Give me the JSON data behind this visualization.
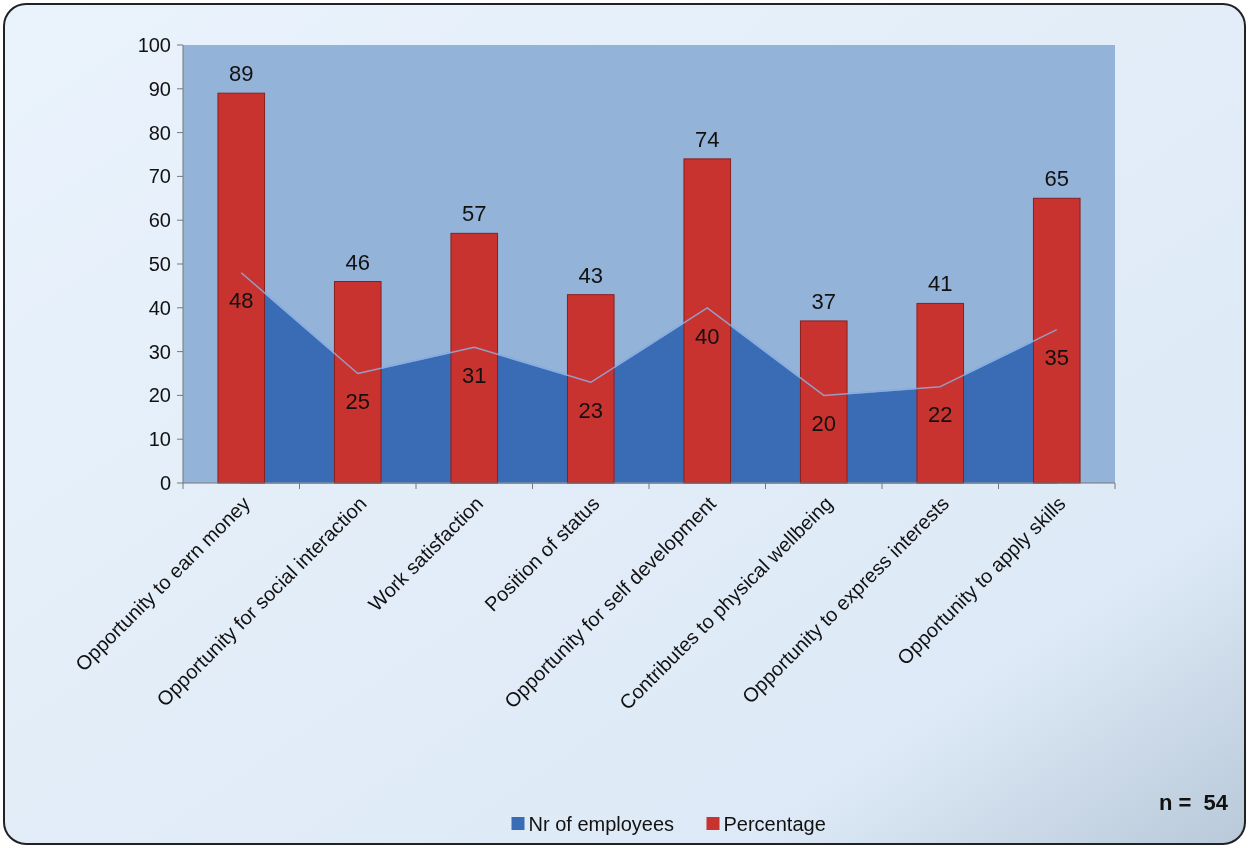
{
  "chart_data": {
    "type": "bar",
    "categories": [
      "Opportunity to earn money",
      "Opportunity for social interaction",
      "Work satisfaction",
      "Position of status",
      "Opportunity for self development",
      "Contributes to physical wellbeing",
      "Opportunity to express interests",
      "Opportunity to apply skills"
    ],
    "series": [
      {
        "name": "Nr of employees",
        "type": "area",
        "color": "#3a6cb5",
        "values": [
          48,
          25,
          31,
          23,
          40,
          20,
          22,
          35
        ],
        "value_labels": [
          "48",
          "25",
          "31",
          "23",
          "40",
          "20",
          "22",
          "35"
        ]
      },
      {
        "name": "Percentage",
        "type": "bar",
        "color": "#c8332f",
        "values": [
          89,
          46,
          57,
          43,
          74,
          37,
          41,
          65
        ]
      }
    ],
    "ylim": [
      0,
      100
    ],
    "yticks": [
      0,
      10,
      20,
      30,
      40,
      50,
      60,
      70,
      80,
      90,
      100
    ],
    "data_labels": true,
    "legend": "bottom",
    "annotations": [
      "n =  54"
    ]
  }
}
